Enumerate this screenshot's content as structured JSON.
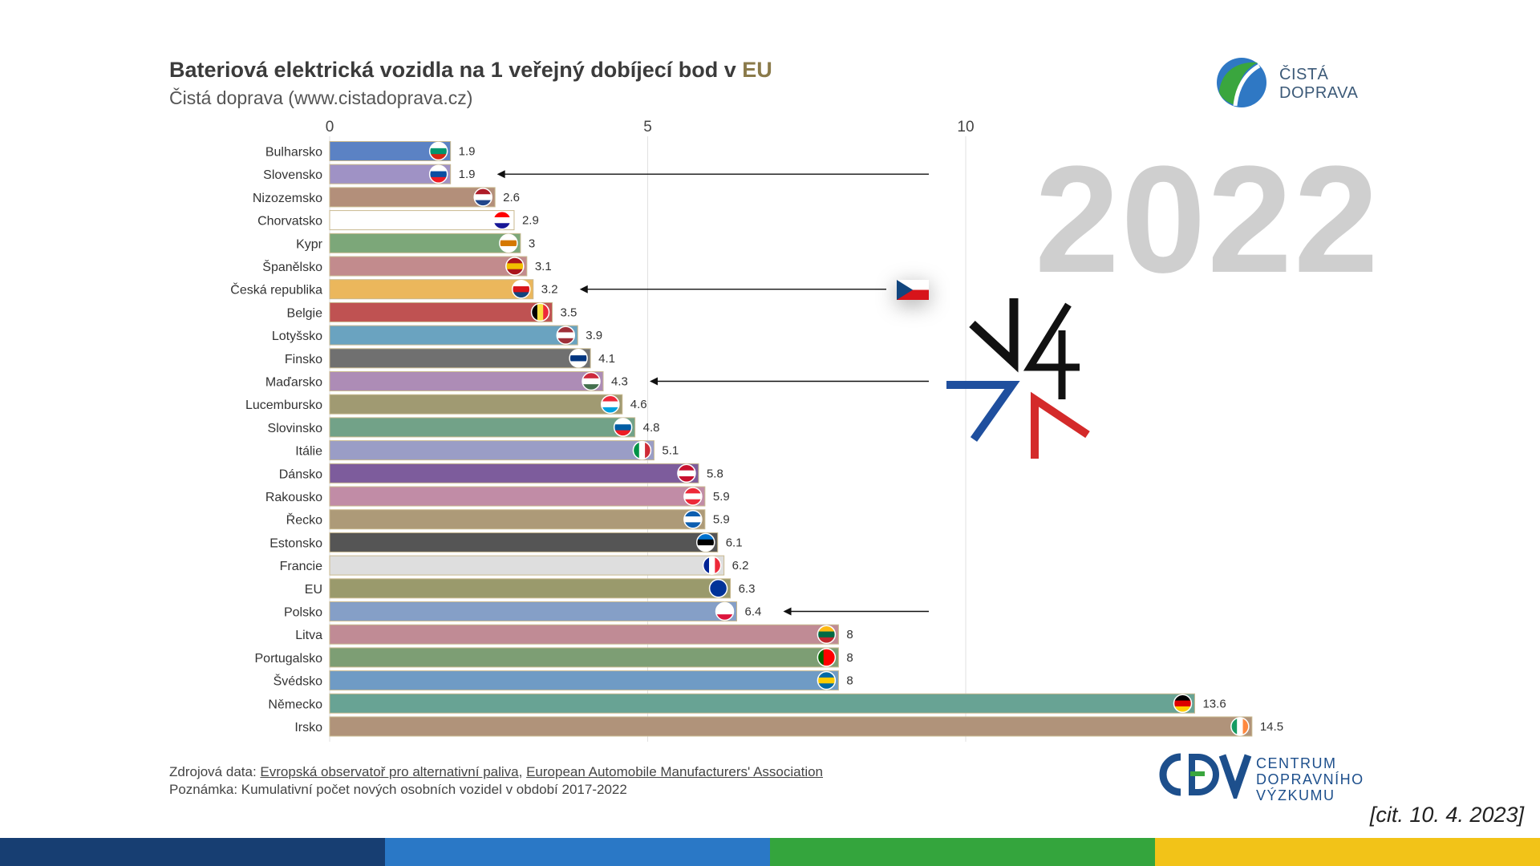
{
  "header": {
    "title_main": "Bateriová elektrická vozidla na 1 veřejný dobíjecí bod v ",
    "title_eu": "EU",
    "subtitle": "Čistá doprava (www.cistadoprava.cz)"
  },
  "year_label": "2022",
  "cista_doprava_logo": {
    "line1": "ČISTÁ",
    "line2": "DOPRAVA"
  },
  "cdv_logo": {
    "line1": "CENTRUM",
    "line2": "DOPRAVNÍHO",
    "line3": "VÝZKUMU"
  },
  "footer": {
    "source_prefix": "Zdrojová data: ",
    "source_1": "Evropská observatoř pro alternativní paliva",
    "source_sep": ", ",
    "source_2": "European Automobile Manufacturers' Association",
    "note": "Poznámka: Kumulativní počet nových osobních vozidel v období 2017-2022"
  },
  "citation": "[cit. 10. 4. 2023]",
  "colors": {
    "stripe": [
      "#173e72",
      "#2a78c6",
      "#34a53d",
      "#f2c318"
    ],
    "v4_black": "#111111",
    "v4_blue": "#1f4f9e",
    "v4_red": "#d42a2a"
  },
  "chart_data": {
    "type": "bar",
    "orientation": "horizontal",
    "xlim": [
      0,
      15
    ],
    "ticks": [
      0,
      5,
      10
    ],
    "grid": true,
    "categories": [
      "Bulharsko",
      "Slovensko",
      "Nizozemsko",
      "Chorvatsko",
      "Kypr",
      "Španělsko",
      "Česká republika",
      "Belgie",
      "Lotyšsko",
      "Finsko",
      "Maďarsko",
      "Lucembursko",
      "Slovinsko",
      "Itálie",
      "Dánsko",
      "Rakousko",
      "Řecko",
      "Estonsko",
      "Francie",
      "EU",
      "Polsko",
      "Litva",
      "Portugalsko",
      "Švédsko",
      "Německo",
      "Irsko"
    ],
    "values": [
      1.9,
      1.9,
      2.6,
      2.9,
      3,
      3.1,
      3.2,
      3.5,
      3.9,
      4.1,
      4.3,
      4.6,
      4.8,
      5.1,
      5.8,
      5.9,
      5.9,
      6.1,
      6.2,
      6.3,
      6.4,
      8,
      8,
      8,
      13.6,
      14.5
    ],
    "value_labels": [
      "1.9",
      "1.9",
      "2.6",
      "2.9",
      "3",
      "3.1",
      "3.2",
      "3.5",
      "3.9",
      "4.1",
      "4.3",
      "4.6",
      "4.8",
      "5.1",
      "5.8",
      "5.9",
      "5.9",
      "6.1",
      "6.2",
      "6.3",
      "6.4",
      "8",
      "8",
      "8",
      "13.6",
      "14.5"
    ],
    "bar_colors": [
      "#5b82c4",
      "#9f92c5",
      "#b38f7a",
      "#ffffff",
      "#7ca779",
      "#c28b8d",
      "#ebb75c",
      "#bf5252",
      "#6aa3c0",
      "#707070",
      "#ad8cb6",
      "#a09a72",
      "#72a288",
      "#9a9dc6",
      "#7d5c9c",
      "#c18ca6",
      "#ad9a78",
      "#555555",
      "#dedede",
      "#9a9a6c",
      "#859fc7",
      "#c08b95",
      "#7d9e74",
      "#6f9bc5",
      "#68a394",
      "#b0937a"
    ],
    "highlighted": [
      "Slovensko",
      "Česká republika",
      "Maďarsko",
      "Polsko"
    ]
  }
}
